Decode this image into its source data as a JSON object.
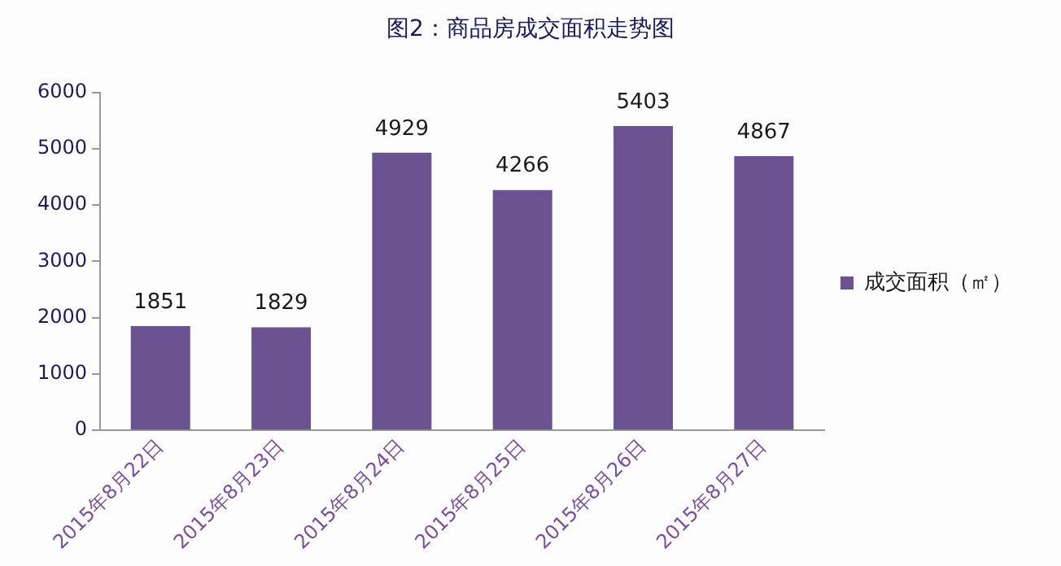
{
  "chart_data": {
    "type": "bar",
    "title": "图2：商品房成交面积走势图",
    "categories": [
      "2015年8月22日",
      "2015年8月23日",
      "2015年8月24日",
      "2015年8月25日",
      "2015年8月26日",
      "2015年8月27日"
    ],
    "series": [
      {
        "name": "成交面积（㎡）",
        "color": "#6b5290",
        "values": [
          1851,
          1829,
          4929,
          4266,
          5403,
          4867
        ]
      }
    ],
    "ylim": [
      0,
      6000
    ],
    "yticks": [
      0,
      1000,
      2000,
      3000,
      4000,
      5000,
      6000
    ],
    "grid": false,
    "legend": "right",
    "data_labels": true
  }
}
